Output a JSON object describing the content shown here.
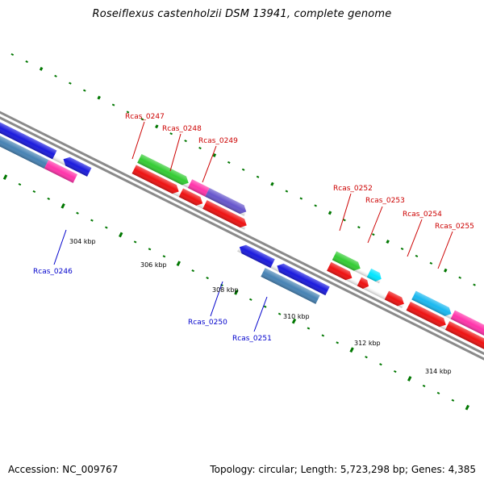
{
  "title": "Roseiflexus castenholzii DSM 13941, complete genome",
  "footer": {
    "accession": "Accession: NC_009767",
    "summary": "Topology: circular; Length: 5,723,298 bp; Genes: 4,385"
  },
  "colors": {
    "forward_label": "#cc0000",
    "reverse_label": "#0000cc",
    "tick": "#007700",
    "backbone": "#8a8a8a"
  },
  "scale_labels": [
    "304 kbp",
    "306 kbp",
    "308 kbp",
    "310 kbp",
    "312 kbp",
    "314 kbp"
  ],
  "gene_labels": {
    "forward": [
      "Rcas_0247",
      "Rcas_0248",
      "Rcas_0249",
      "Rcas_0252",
      "Rcas_0253",
      "Rcas_0254",
      "Rcas_0255"
    ],
    "reverse": [
      "Rcas_0246",
      "Rcas_0250",
      "Rcas_0251"
    ]
  }
}
